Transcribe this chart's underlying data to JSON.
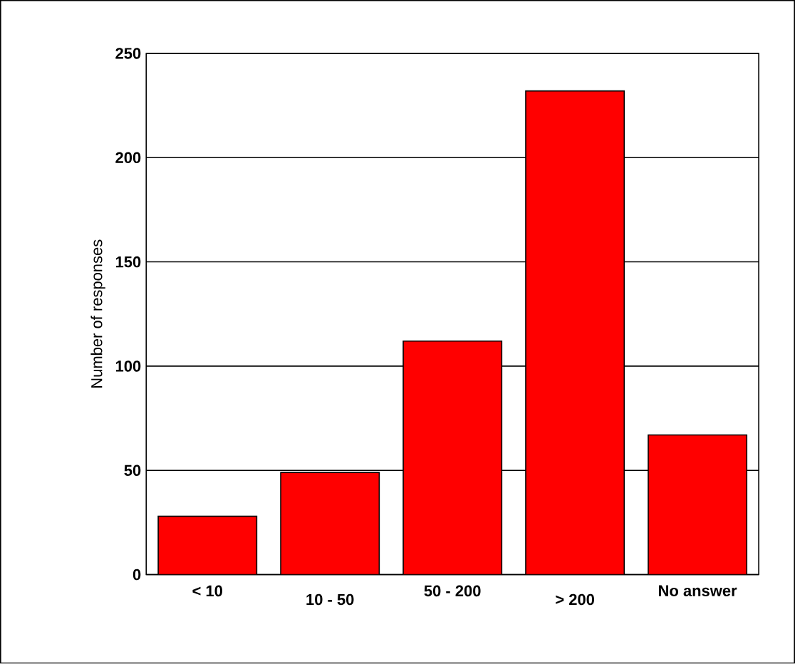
{
  "chart_data": {
    "type": "bar",
    "ylabel": "Number of responses",
    "categories": [
      "< 10",
      "10 - 50",
      "50 - 200",
      "> 200",
      "No answer"
    ],
    "values": [
      28,
      49,
      112,
      232,
      67
    ],
    "color": "#ff0000",
    "ylim": [
      0,
      250
    ],
    "yticks": [
      0,
      50,
      100,
      150,
      200,
      250
    ],
    "grid": "y"
  }
}
